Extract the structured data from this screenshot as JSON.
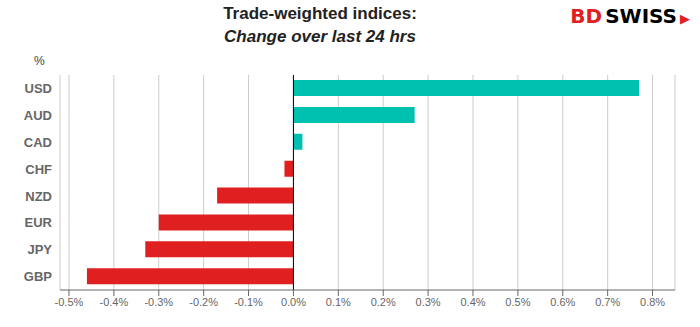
{
  "chart_data": {
    "type": "bar",
    "orientation": "horizontal",
    "title": "Trade-weighted indices:",
    "subtitle": "Change over last 24 hrs",
    "categories": [
      "USD",
      "AUD",
      "CAD",
      "CHF",
      "NZD",
      "EUR",
      "JPY",
      "GBP"
    ],
    "values": [
      0.0077,
      0.0027,
      0.0002,
      -0.0002,
      -0.0017,
      -0.003,
      -0.0033,
      -0.0046
    ],
    "colors": [
      "#00c0b0",
      "#00c0b0",
      "#00c0b0",
      "#e02020",
      "#e02020",
      "#e02020",
      "#e02020",
      "#e02020"
    ],
    "xlim": [
      -0.0052,
      0.0085
    ],
    "xticks": [
      {
        "value": -0.005,
        "label": "-0.5%"
      },
      {
        "value": -0.004,
        "label": "-0.4%"
      },
      {
        "value": -0.003,
        "label": "-0.3%"
      },
      {
        "value": -0.002,
        "label": "-0.2%"
      },
      {
        "value": -0.001,
        "label": "-0.1%"
      },
      {
        "value": 0.0,
        "label": "0.0%"
      },
      {
        "value": 0.001,
        "label": "0.1%"
      },
      {
        "value": 0.002,
        "label": "0.2%"
      },
      {
        "value": 0.003,
        "label": "0.3%"
      },
      {
        "value": 0.004,
        "label": "0.4%"
      },
      {
        "value": 0.005,
        "label": "0.5%"
      },
      {
        "value": 0.006,
        "label": "0.6%"
      },
      {
        "value": 0.007,
        "label": "0.7%"
      },
      {
        "value": 0.008,
        "label": "0.8%"
      }
    ],
    "grid": true,
    "annotations": [
      {
        "text": "%"
      },
      {
        "text": "BD",
        "color": "#e02020"
      },
      {
        "text": "SWISS",
        "color": "#000000"
      },
      {
        "text": "▶",
        "color": "#e02020"
      }
    ]
  }
}
